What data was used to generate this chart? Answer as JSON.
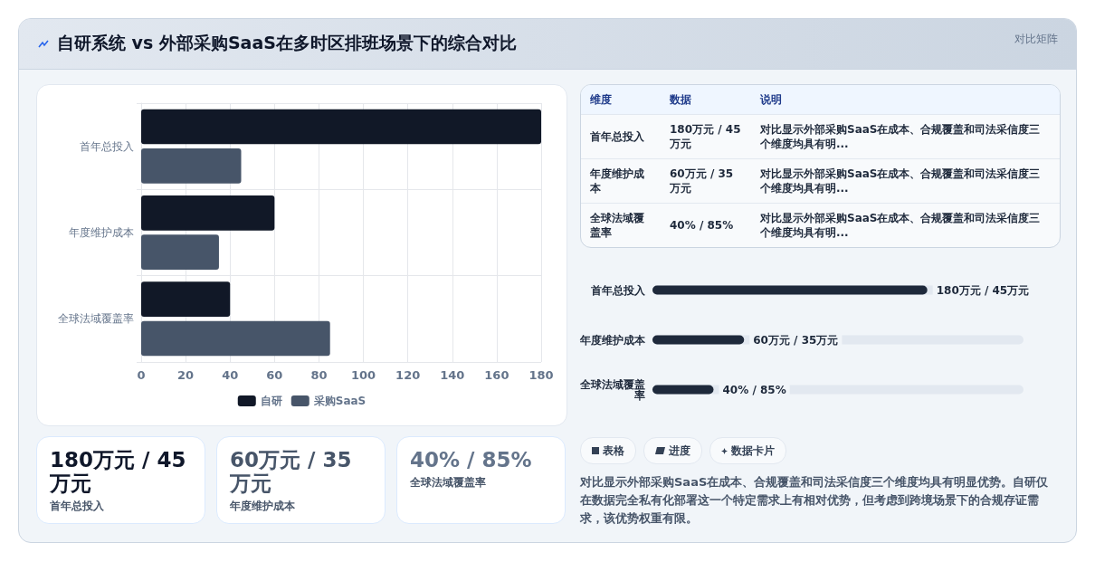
{
  "chart_data": [
    {
      "type": "bar",
      "orientation": "horizontal",
      "title": "自研系统 vs 外部采购SaaS在多时区排班场景下的综合对比",
      "annotations": [
        "对比矩阵"
      ],
      "categories": [
        "首年总投入",
        "年度维护成本",
        "全球法域覆盖率"
      ],
      "series": [
        {
          "name": "自研",
          "color": "#111827",
          "values": [
            180,
            60,
            40
          ]
        },
        {
          "name": "采购SaaS",
          "color": "#475569",
          "values": [
            45,
            35,
            85
          ]
        }
      ],
      "xlim": [
        0,
        180
      ],
      "xticks": [
        0,
        20,
        40,
        60,
        80,
        100,
        120,
        140,
        160,
        180
      ],
      "grid": true,
      "legend": "bottom"
    },
    {
      "type": "other",
      "annotations": [
        "维度",
        "数据",
        "说明",
        "首年总投入",
        "180万元 / 45万元",
        "对比显示外部采购SaaS在成本、合规覆盖和司法采信度三个维度均具有明...",
        "年度维护成本",
        "60万元 / 35万元",
        "对比显示外部采购SaaS在成本、合规覆盖和司法采信度三个维度均具有明...",
        "全球法域覆盖率",
        "40% / 85%",
        "对比显示外部采购SaaS在成本、合规覆盖和司法采信度三个维度均具有明..."
      ]
    },
    {
      "type": "bar",
      "orientation": "horizontal",
      "categories": [
        "首年总投入",
        "年度维护成本",
        "全球法域覆盖率"
      ],
      "values": [
        180,
        60,
        40
      ],
      "color": "#1e293b",
      "value_labels": [
        "180万元 / 45万元",
        "60万元 / 35万元",
        "40% / 85%"
      ]
    },
    {
      "type": "other",
      "title": "180万元 / 45万元",
      "subtitle": "首年总投入"
    },
    {
      "type": "other",
      "title": "60万元 / 35万元",
      "subtitle": "年度维护成本"
    },
    {
      "type": "other",
      "title": "40% / 85%",
      "subtitle": "全球法域覆盖率"
    },
    {
      "type": "other",
      "annotations": [
        "表格",
        "进度",
        "数据卡片",
        "对比显示外部采购SaaS在成本、合规覆盖和司法采信度三个维度均具有明显优势。自研仅在数据完全私有化部署这一个特定需求上有相对优势，但考虑到跨境场景下的合规存证需求，该优势权重有限。"
      ]
    }
  ]
}
